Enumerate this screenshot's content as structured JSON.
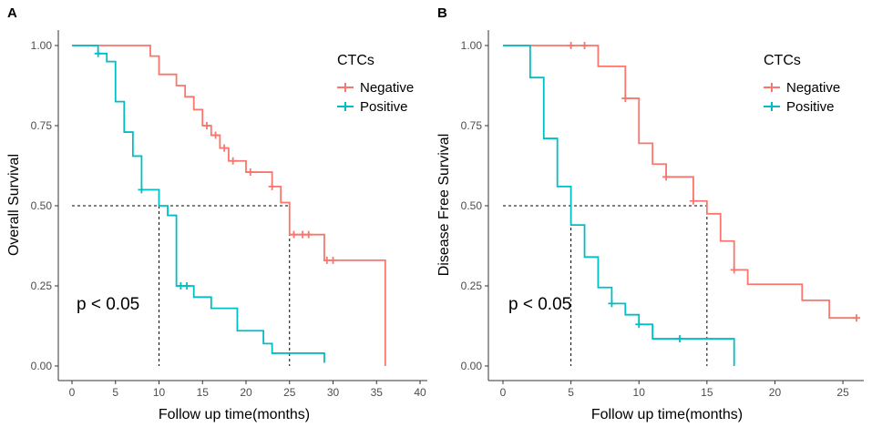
{
  "colors": {
    "negative": "#F8766D",
    "positive": "#00BFC4",
    "axis": "#333333",
    "tick_text": "#4d4d4d"
  },
  "chart_data": [
    {
      "type": "line",
      "subtype": "kaplan-meier",
      "panel": "A",
      "xlabel": "Follow up time(months)",
      "ylabel": "Overall Survival",
      "xlim": [
        0,
        40
      ],
      "ylim": [
        0,
        1
      ],
      "x_ticks": [
        0,
        5,
        10,
        15,
        20,
        25,
        30,
        35,
        40
      ],
      "x_tick_labels": [
        "0",
        "5",
        "10",
        "15",
        "20",
        "25",
        "30",
        "35",
        "40"
      ],
      "y_ticks": [
        0,
        0.25,
        0.5,
        0.75,
        1
      ],
      "y_tick_labels": [
        "0.00",
        "0.25",
        "0.50",
        "0.75",
        "1.00"
      ],
      "legend_title": "CTCs",
      "legend_position": "top-right",
      "annotation": "p < 0.05",
      "median_lines": [
        {
          "x": 10,
          "y": 0.5
        },
        {
          "x": 25,
          "y": 0.5
        }
      ],
      "series": [
        {
          "name": "Negative",
          "color_key": "negative",
          "steps": [
            [
              0,
              1
            ],
            [
              9,
              0.967
            ],
            [
              10,
              0.91
            ],
            [
              12,
              0.875
            ],
            [
              13,
              0.84
            ],
            [
              14,
              0.8
            ],
            [
              15,
              0.75
            ],
            [
              16,
              0.72
            ],
            [
              17,
              0.68
            ],
            [
              18,
              0.64
            ],
            [
              20,
              0.605
            ],
            [
              23,
              0.56
            ],
            [
              24,
              0.51
            ],
            [
              25,
              0.41
            ],
            [
              29,
              0.33
            ],
            [
              36,
              0
            ]
          ],
          "censor": [
            [
              15.5,
              0.75
            ],
            [
              16.5,
              0.72
            ],
            [
              17.5,
              0.68
            ],
            [
              18.5,
              0.64
            ],
            [
              20.5,
              0.605
            ],
            [
              23,
              0.56
            ],
            [
              25.5,
              0.41
            ],
            [
              26.5,
              0.41
            ],
            [
              27.2,
              0.41
            ],
            [
              29.3,
              0.33
            ],
            [
              30,
              0.33
            ]
          ]
        },
        {
          "name": "Positive",
          "color_key": "positive",
          "steps": [
            [
              0,
              1
            ],
            [
              3,
              0.975
            ],
            [
              4,
              0.95
            ],
            [
              5,
              0.825
            ],
            [
              6,
              0.73
            ],
            [
              7,
              0.655
            ],
            [
              8,
              0.55
            ],
            [
              10,
              0.5
            ],
            [
              11,
              0.47
            ],
            [
              12,
              0.25
            ],
            [
              14,
              0.215
            ],
            [
              16,
              0.18
            ],
            [
              19,
              0.11
            ],
            [
              22,
              0.07
            ],
            [
              23,
              0.04
            ],
            [
              29,
              0.01
            ]
          ],
          "end_x": 29,
          "censor": [
            [
              3,
              0.975
            ],
            [
              8,
              0.55
            ],
            [
              12.5,
              0.25
            ],
            [
              13.2,
              0.25
            ]
          ]
        }
      ]
    },
    {
      "type": "line",
      "subtype": "kaplan-meier",
      "panel": "B",
      "xlabel": "Follow up time(months)",
      "ylabel": "Disease Free Survival",
      "xlim": [
        0,
        26
      ],
      "ylim": [
        0,
        1
      ],
      "x_ticks": [
        0,
        5,
        10,
        15,
        20,
        25
      ],
      "x_tick_labels": [
        "0",
        "5",
        "10",
        "15",
        "20",
        "25"
      ],
      "y_ticks": [
        0,
        0.25,
        0.5,
        0.75,
        1
      ],
      "y_tick_labels": [
        "0.00",
        "0.25",
        "0.50",
        "0.75",
        "1.00"
      ],
      "legend_title": "CTCs",
      "legend_position": "top-right",
      "annotation": "p < 0.05",
      "median_lines": [
        {
          "x": 5,
          "y": 0.5
        },
        {
          "x": 15,
          "y": 0.5
        }
      ],
      "series": [
        {
          "name": "Negative",
          "color_key": "negative",
          "steps": [
            [
              0,
              1
            ],
            [
              7,
              0.935
            ],
            [
              9,
              0.835
            ],
            [
              10,
              0.695
            ],
            [
              11,
              0.63
            ],
            [
              12,
              0.59
            ],
            [
              14,
              0.515
            ],
            [
              15,
              0.475
            ],
            [
              16,
              0.39
            ],
            [
              17,
              0.3
            ],
            [
              18,
              0.255
            ],
            [
              22,
              0.205
            ],
            [
              24,
              0.15
            ]
          ],
          "end_x": 26,
          "censor": [
            [
              5,
              1
            ],
            [
              6,
              1
            ],
            [
              9,
              0.835
            ],
            [
              12,
              0.59
            ],
            [
              14,
              0.515
            ],
            [
              17,
              0.3
            ],
            [
              26,
              0.15
            ]
          ]
        },
        {
          "name": "Positive",
          "color_key": "positive",
          "steps": [
            [
              0,
              1
            ],
            [
              2,
              0.9
            ],
            [
              3,
              0.71
            ],
            [
              4,
              0.56
            ],
            [
              5,
              0.44
            ],
            [
              6,
              0.34
            ],
            [
              7,
              0.245
            ],
            [
              8,
              0.195
            ],
            [
              9,
              0.16
            ],
            [
              10,
              0.13
            ],
            [
              11,
              0.085
            ],
            [
              17,
              0
            ]
          ],
          "censor": [
            [
              8,
              0.195
            ],
            [
              10,
              0.13
            ],
            [
              13,
              0.085
            ]
          ]
        }
      ]
    }
  ]
}
